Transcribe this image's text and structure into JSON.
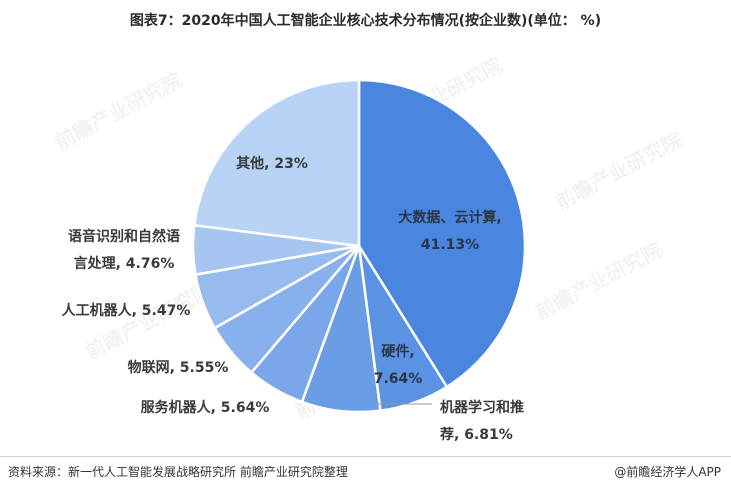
{
  "title": "图表7：2020年中国人工智能企业核心技术分布情况(按企业数)(单位： %)",
  "footer": {
    "source": "资料来源：新一代人工智能发展战略研究所 前瞻产业研究院整理",
    "brand": "@前瞻经济学人APP"
  },
  "watermark": "前瞻产业研究院",
  "chart_data": {
    "type": "pie",
    "title": "图表7：2020年中国人工智能企业核心技术分布情况(按企业数)(单位： %)",
    "slices": [
      {
        "label_lines": [
          "大数据、云计算,",
          "41.13%"
        ],
        "value": 41.13,
        "color": "#4a86e0"
      },
      {
        "label_lines": [
          "机器学习和推",
          "荐, 6.81%"
        ],
        "value": 6.81,
        "color": "#5b93e4"
      },
      {
        "label_lines": [
          "硬件,",
          "7.64%"
        ],
        "value": 7.64,
        "color": "#6a9de6"
      },
      {
        "label_lines": [
          "服务机器人, 5.64%"
        ],
        "value": 5.64,
        "color": "#79a7ea"
      },
      {
        "label_lines": [
          "物联网, 5.55%"
        ],
        "value": 5.55,
        "color": "#87b0ec"
      },
      {
        "label_lines": [
          "人工机器人, 5.47%"
        ],
        "value": 5.47,
        "color": "#97bbef"
      },
      {
        "label_lines": [
          "语音识别和自然语",
          "言处理, 4.76%"
        ],
        "value": 4.76,
        "color": "#a6c6f1"
      },
      {
        "label_lines": [
          "其他, 23%"
        ],
        "value": 23,
        "color": "#b9d3f6"
      }
    ]
  }
}
